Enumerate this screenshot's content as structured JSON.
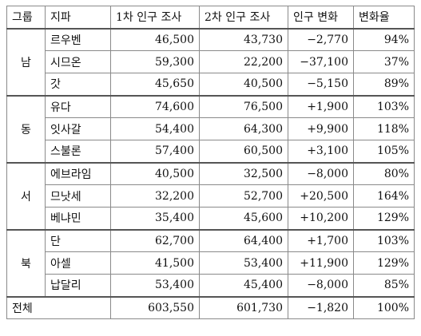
{
  "headers": [
    "그룹",
    "지파",
    "1차 인구 조사",
    "2차 인구 조사",
    "인구 변화",
    "변화율"
  ],
  "groups": [
    {
      "name": "남",
      "rows": [
        {
          "tribe": "르우벤",
          "first": "46,500",
          "second": "43,730",
          "change": "−2,770",
          "rate": "94%"
        },
        {
          "tribe": "시므온",
          "first": "59,300",
          "second": "22,200",
          "change": "−37,100",
          "rate": "37%"
        },
        {
          "tribe": "갓",
          "first": "45,650",
          "second": "40,500",
          "change": "−5,150",
          "rate": "89%"
        }
      ]
    },
    {
      "name": "동",
      "rows": [
        {
          "tribe": "유다",
          "first": "74,600",
          "second": "76,500",
          "change": "+1,900",
          "rate": "103%"
        },
        {
          "tribe": "잇사갈",
          "first": "54,400",
          "second": "64,300",
          "change": "+9,900",
          "rate": "118%"
        },
        {
          "tribe": "스불론",
          "first": "57,400",
          "second": "60,500",
          "change": "+3,100",
          "rate": "105%"
        }
      ]
    },
    {
      "name": "서",
      "rows": [
        {
          "tribe": "에브라임",
          "first": "40,500",
          "second": "32,500",
          "change": "−8,000",
          "rate": "80%"
        },
        {
          "tribe": "므낫세",
          "first": "32,200",
          "second": "52,700",
          "change": "+20,500",
          "rate": "164%"
        },
        {
          "tribe": "베냐민",
          "first": "35,400",
          "second": "45,600",
          "change": "+10,200",
          "rate": "129%"
        }
      ]
    },
    {
      "name": "북",
      "rows": [
        {
          "tribe": "단",
          "first": "62,700",
          "second": "64,400",
          "change": "+1,700",
          "rate": "103%"
        },
        {
          "tribe": "아셀",
          "first": "41,500",
          "second": "53,400",
          "change": "+11,900",
          "rate": "129%"
        },
        {
          "tribe": "납달리",
          "first": "53,400",
          "second": "45,400",
          "change": "−8,000",
          "rate": "85%"
        }
      ]
    }
  ],
  "total": {
    "label": "전체",
    "first": "603,550",
    "second": "601,730",
    "change": "−1,820",
    "rate": "100%"
  }
}
